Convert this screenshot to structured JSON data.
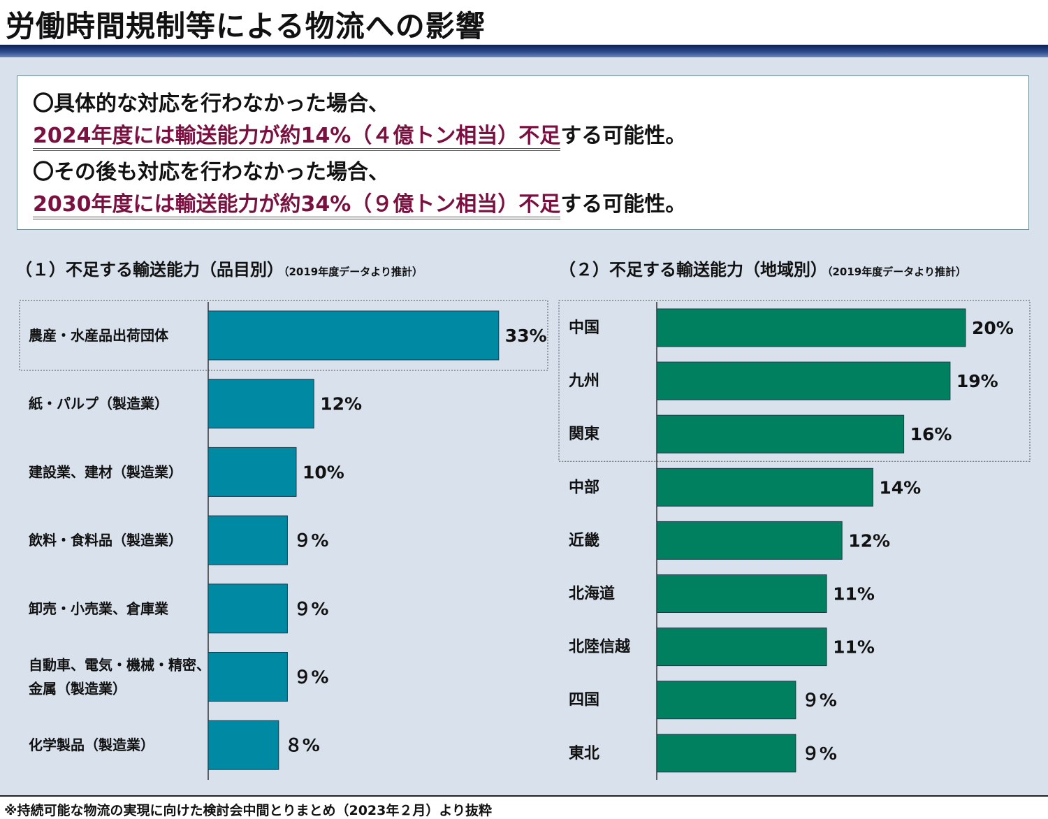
{
  "title": "労働時間規制等による物流への影響",
  "summary": {
    "line1": "〇具体的な対応を行わなかった場合、",
    "line2_highlight": "2024年度には輸送能力が約14%（４億トン相当）不足",
    "line2_rest": "する可能性。",
    "line3": "〇その後も対応を行わなかった場合、",
    "line4_highlight": "2030年度には輸送能力が約34%（９億トン相当）不足",
    "line4_rest": "する可能性。"
  },
  "left_section": {
    "title": "（１）不足する輸送能力（品目別）",
    "note": "（2019年度データより推計）"
  },
  "right_section": {
    "title": "（２）不足する輸送能力（地域別）",
    "note": "（2019年度データより推計）"
  },
  "footer": "※持続可能な物流の実現に向けた検討会中間とりまとめ（2023年２月）より抜粋",
  "colors": {
    "left_bar": "#0089a3",
    "right_bar": "#00805f",
    "highlight_text": "#7a1040",
    "background": "#d8e1ec"
  },
  "chart_data": [
    {
      "type": "bar",
      "orientation": "horizontal",
      "categories": [
        [
          "農産・水産品出荷団体"
        ],
        [
          "紙・パルプ（製造業）"
        ],
        [
          "建設業、建材（製造業）"
        ],
        [
          "飲料・食料品（製造業）"
        ],
        [
          "卸売・小売業、倉庫業"
        ],
        [
          "自動車、電気・機械・精密、",
          "金属（製造業）"
        ],
        [
          "化学製品（製造業）"
        ]
      ],
      "values": [
        33,
        12,
        10,
        9,
        9,
        9,
        8
      ],
      "labels": [
        "33%",
        "12%",
        "10%",
        "９%",
        "９%",
        "９%",
        "８%"
      ],
      "highlighted": [
        0
      ]
    },
    {
      "type": "bar",
      "orientation": "horizontal",
      "categories": [
        [
          "中国"
        ],
        [
          "九州"
        ],
        [
          "関東"
        ],
        [
          "中部"
        ],
        [
          "近畿"
        ],
        [
          "北海道"
        ],
        [
          "北陸信越"
        ],
        [
          "四国"
        ],
        [
          "東北"
        ]
      ],
      "values": [
        20,
        19,
        16,
        14,
        12,
        11,
        11,
        9,
        9
      ],
      "labels": [
        "20%",
        "19%",
        "16%",
        "14%",
        "12%",
        "11%",
        "11%",
        "９%",
        "９%"
      ],
      "highlighted": [
        0,
        1,
        2
      ]
    }
  ]
}
